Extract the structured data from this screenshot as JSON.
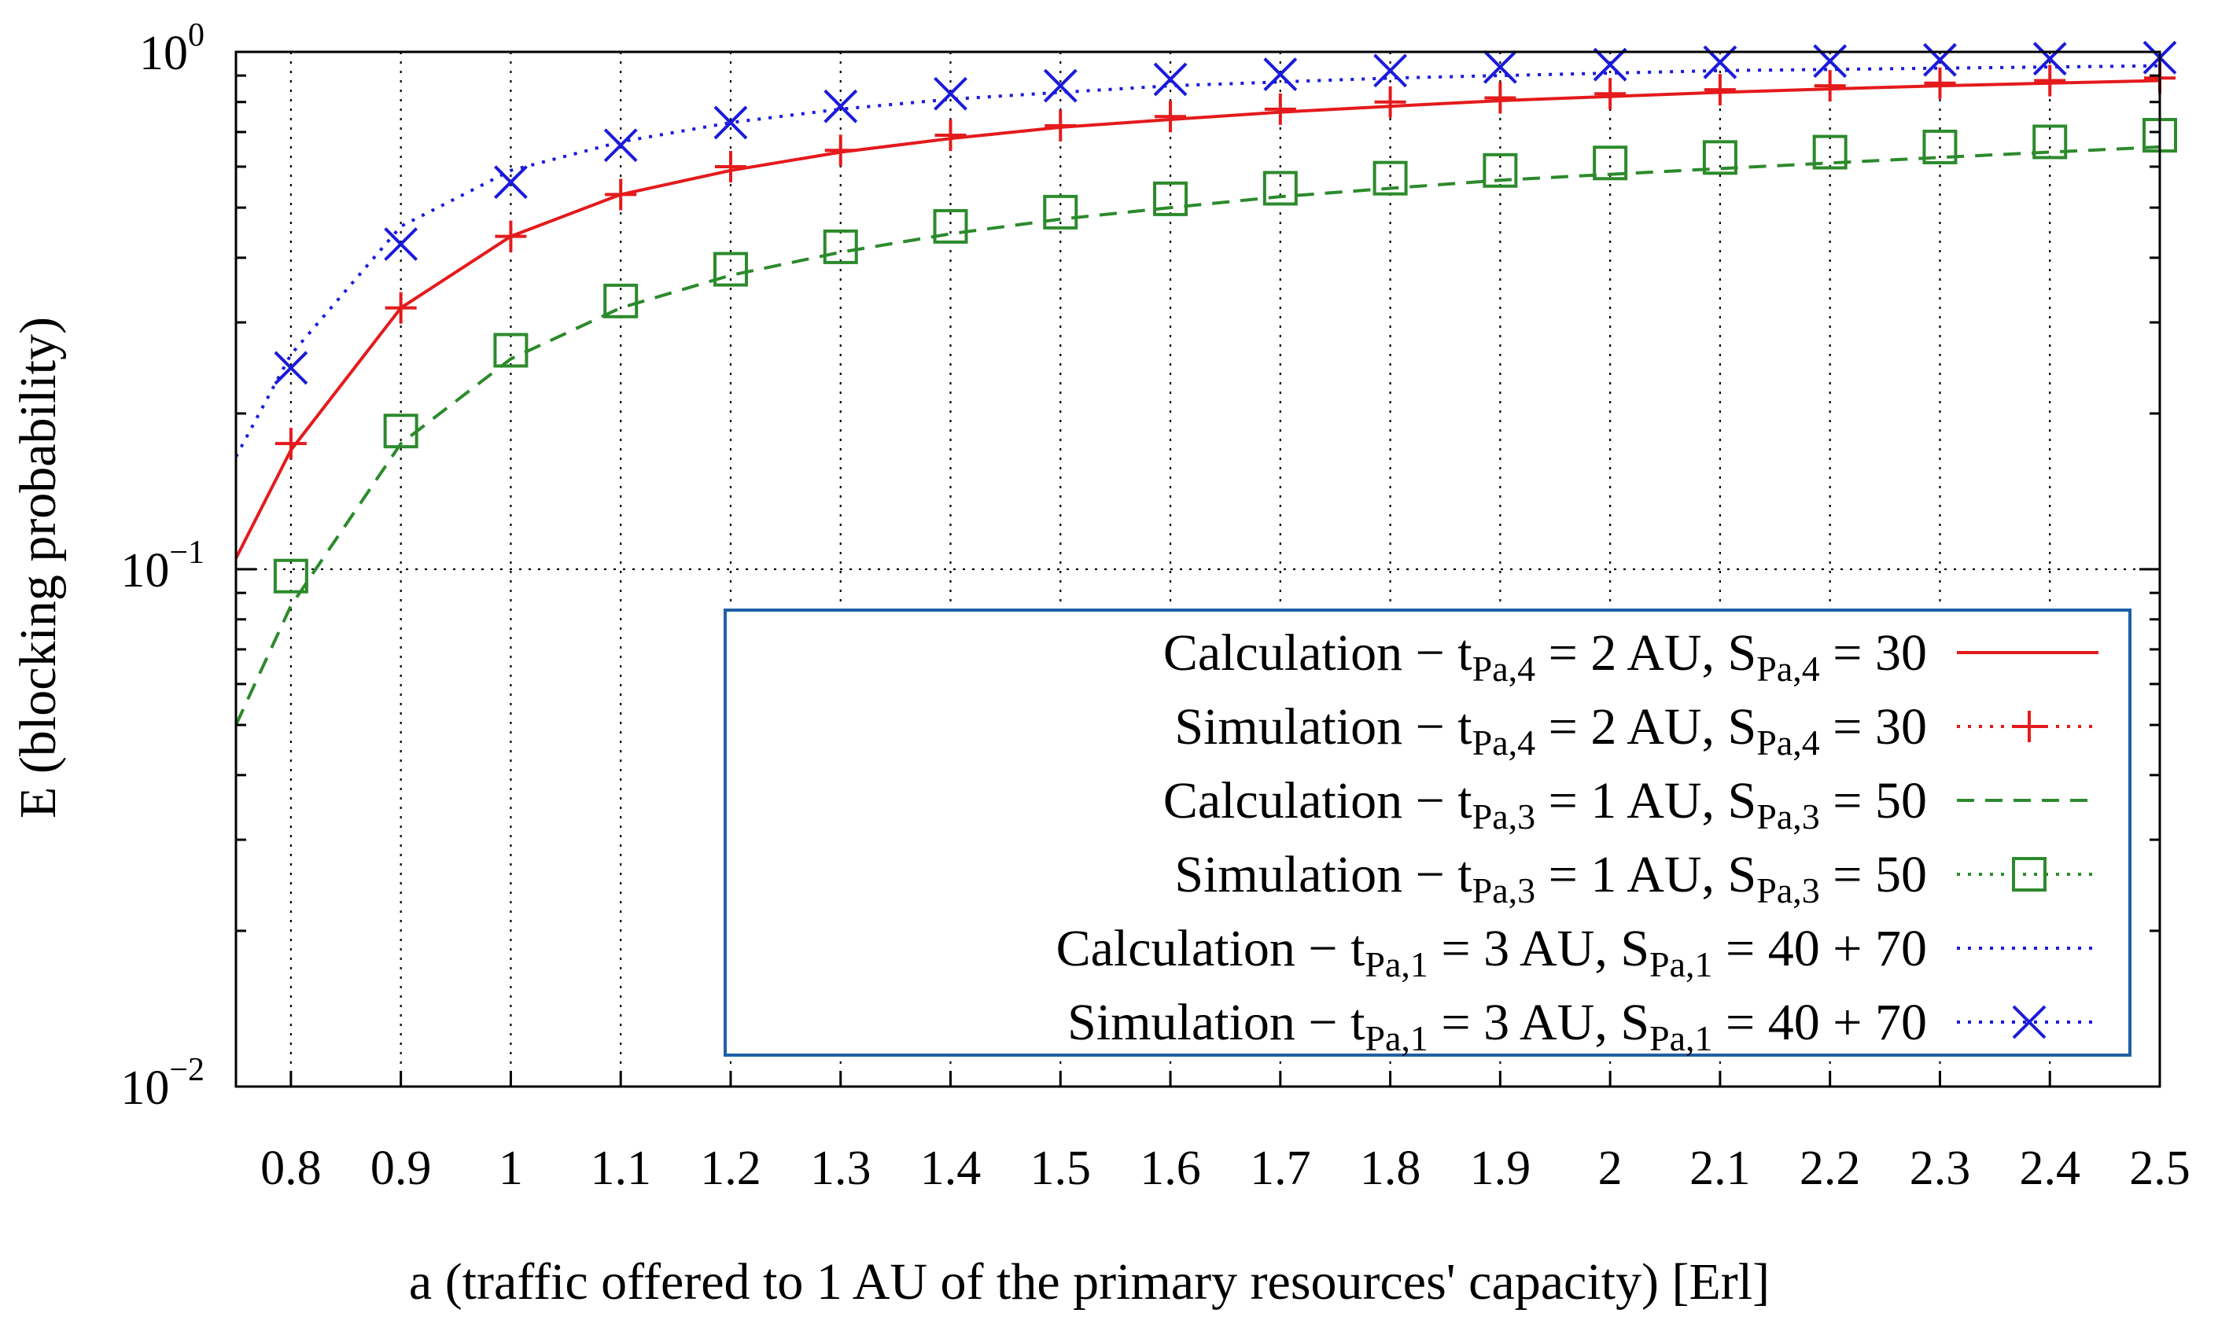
{
  "chart_data": {
    "type": "line",
    "title": "",
    "xlabel": "a (traffic offered to 1 AU of the primary resources' capacity) [Erl]",
    "ylabel": "E (blocking probability)",
    "xlim": [
      0.75,
      2.5
    ],
    "ylim": [
      0.01,
      1
    ],
    "yscale": "log",
    "grid": true,
    "legend_position": "bottom-right",
    "x_ticks": [
      "0.8",
      "0.9",
      "1",
      "1.1",
      "1.2",
      "1.3",
      "1.4",
      "1.5",
      "1.6",
      "1.7",
      "1.8",
      "1.9",
      "2",
      "2.1",
      "2.2",
      "2.3",
      "2.4",
      "2.5"
    ],
    "y_ticks": [
      {
        "value": 1,
        "base": "10",
        "exp": "0"
      },
      {
        "value": 0.1,
        "base": "10",
        "exp": "−1"
      },
      {
        "value": 0.01,
        "base": "10",
        "exp": "−2"
      }
    ],
    "series": [
      {
        "name": "Calculation − tPa,4 = 2 AU, SPa,4 = 30",
        "legend": {
          "pre": "Calculation − t",
          "sub1": "Pa,4",
          "mid": " = 2 AU, S",
          "sub2": "Pa,4",
          "post": " = 30"
        },
        "kind": "line",
        "color": "#e41a1c",
        "dash": "none",
        "marker": "none",
        "x": [
          0.75,
          0.8,
          0.9,
          1.0,
          1.1,
          1.2,
          1.3,
          1.4,
          1.5,
          1.6,
          1.7,
          1.8,
          1.9,
          2.0,
          2.1,
          2.2,
          2.3,
          2.4,
          2.5
        ],
        "values": [
          0.105,
          0.17,
          0.32,
          0.44,
          0.53,
          0.59,
          0.64,
          0.68,
          0.715,
          0.74,
          0.765,
          0.785,
          0.805,
          0.82,
          0.835,
          0.848,
          0.86,
          0.87,
          0.88
        ]
      },
      {
        "name": "Simulation − tPa,4 = 2 AU, SPa,4 = 30",
        "legend": {
          "pre": "Simulation − t",
          "sub1": "Pa,4",
          "mid": " = 2 AU, S",
          "sub2": "Pa,4",
          "post": " = 30"
        },
        "kind": "markers",
        "color": "#e41a1c",
        "dash": "dotted",
        "marker": "plus",
        "x": [
          0.8,
          0.9,
          1.0,
          1.1,
          1.2,
          1.3,
          1.4,
          1.5,
          1.6,
          1.7,
          1.8,
          1.9,
          2.0,
          2.1,
          2.2,
          2.3,
          2.4,
          2.5
        ],
        "values": [
          0.175,
          0.32,
          0.44,
          0.53,
          0.6,
          0.645,
          0.69,
          0.72,
          0.75,
          0.775,
          0.8,
          0.815,
          0.83,
          0.845,
          0.86,
          0.87,
          0.88,
          0.89
        ]
      },
      {
        "name": "Calculation − tPa,3 = 1 AU, SPa,3 = 50",
        "legend": {
          "pre": "Calculation − t",
          "sub1": "Pa,3",
          "mid": " = 1 AU, S",
          "sub2": "Pa,3",
          "post": " = 50"
        },
        "kind": "line",
        "color": "#2c8a2c",
        "dash": "dashed",
        "marker": "none",
        "x": [
          0.75,
          0.8,
          0.9,
          1.0,
          1.1,
          1.2,
          1.3,
          1.4,
          1.5,
          1.6,
          1.7,
          1.8,
          1.9,
          2.0,
          2.1,
          2.2,
          2.3,
          2.4,
          2.5
        ],
        "values": [
          0.05,
          0.085,
          0.175,
          0.255,
          0.32,
          0.37,
          0.41,
          0.445,
          0.475,
          0.5,
          0.525,
          0.545,
          0.565,
          0.58,
          0.595,
          0.61,
          0.625,
          0.64,
          0.655
        ]
      },
      {
        "name": "Simulation − tPa,3 = 1 AU, SPa,3 = 50",
        "legend": {
          "pre": "Simulation − t",
          "sub1": "Pa,3",
          "mid": " = 1 AU, S",
          "sub2": "Pa,3",
          "post": " = 50"
        },
        "kind": "markers",
        "color": "#2c8a2c",
        "dash": "dotted",
        "marker": "square",
        "x": [
          0.8,
          0.9,
          1.0,
          1.1,
          1.2,
          1.3,
          1.4,
          1.5,
          1.6,
          1.7,
          1.8,
          1.9,
          2.0,
          2.1,
          2.2,
          2.3,
          2.4,
          2.5
        ],
        "values": [
          0.097,
          0.185,
          0.265,
          0.33,
          0.38,
          0.42,
          0.46,
          0.49,
          0.52,
          0.545,
          0.57,
          0.59,
          0.61,
          0.625,
          0.64,
          0.655,
          0.67,
          0.69
        ]
      },
      {
        "name": "Calculation − tPa,1 = 3 AU, SPa,1 = 40 + 70",
        "legend": {
          "pre": "Calculation − t",
          "sub1": "Pa,1",
          "mid": " = 3 AU, S",
          "sub2": "Pa,1",
          "post": " = 40 + 70"
        },
        "kind": "line",
        "color": "#1a1adc",
        "dash": "dotted",
        "marker": "none",
        "x": [
          0.75,
          0.8,
          0.9,
          1.0,
          1.1,
          1.2,
          1.3,
          1.4,
          1.5,
          1.6,
          1.7,
          1.8,
          1.9,
          2.0,
          2.1,
          2.2,
          2.3,
          2.4,
          2.5
        ],
        "values": [
          0.165,
          0.26,
          0.46,
          0.59,
          0.67,
          0.73,
          0.775,
          0.81,
          0.835,
          0.86,
          0.875,
          0.89,
          0.9,
          0.91,
          0.92,
          0.925,
          0.93,
          0.935,
          0.94
        ]
      },
      {
        "name": "Simulation − tPa,1 = 3 AU, SPa,1 = 40 + 70",
        "legend": {
          "pre": "Simulation − t",
          "sub1": "Pa,1",
          "mid": " = 3 AU, S",
          "sub2": "Pa,1",
          "post": " = 40 + 70"
        },
        "kind": "markers",
        "color": "#1a1adc",
        "dash": "dotted",
        "marker": "cross",
        "x": [
          0.8,
          0.9,
          1.0,
          1.1,
          1.2,
          1.3,
          1.4,
          1.5,
          1.6,
          1.7,
          1.8,
          1.9,
          2.0,
          2.1,
          2.2,
          2.3,
          2.4,
          2.5
        ],
        "values": [
          0.245,
          0.425,
          0.56,
          0.66,
          0.73,
          0.785,
          0.83,
          0.86,
          0.885,
          0.905,
          0.92,
          0.935,
          0.945,
          0.955,
          0.96,
          0.965,
          0.97,
          0.975
        ]
      }
    ]
  }
}
